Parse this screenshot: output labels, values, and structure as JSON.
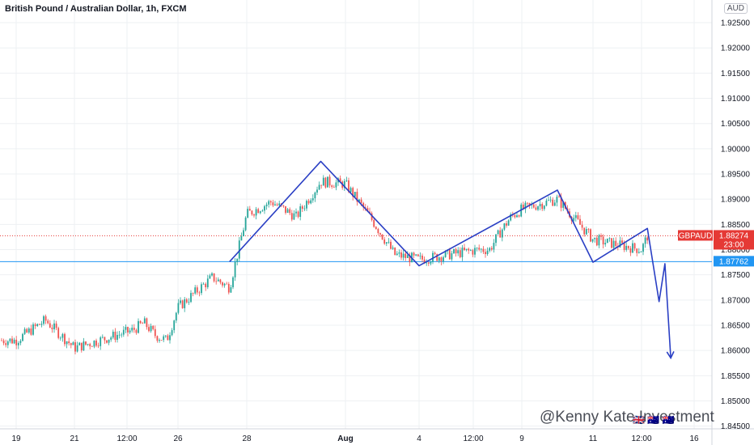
{
  "header": {
    "title": "British Pound / Australian Dollar, 1h, FXCM",
    "currency_badge": "AUD"
  },
  "price_tag": {
    "symbol": "GBPAUD",
    "price": "1.88274",
    "countdown": "23:00",
    "color": "#e53935"
  },
  "level_tag": {
    "price": "1.87762",
    "color": "#2196f3"
  },
  "watermark": "@Kenny Kate Investment",
  "colors": {
    "up": "#26a69a",
    "down": "#ef5350",
    "pattern": "#2a3fc4",
    "hline": "#2196f3",
    "grid": "#eef0f3"
  },
  "chart_data": {
    "type": "candlestick",
    "y_axis": {
      "ticks": [
        "1.92500",
        "1.92000",
        "1.91500",
        "1.91000",
        "1.90500",
        "1.90000",
        "1.89500",
        "1.89000",
        "1.88500",
        "1.88000",
        "1.87500",
        "1.87000",
        "1.86500",
        "1.86000",
        "1.85500",
        "1.85000",
        "1.84500"
      ],
      "ylim": [
        1.8435,
        1.9295
      ]
    },
    "x_axis": {
      "ticks": [
        "19",
        "21",
        "12:00",
        "26",
        "28",
        "Aug",
        "4",
        "12:00",
        "9",
        "11",
        "12:00",
        "16"
      ]
    },
    "horizontal_lines": [
      {
        "price": 1.87762,
        "style": "solid",
        "color": "#2196f3"
      },
      {
        "price": 1.88274,
        "style": "dotted",
        "color": "#e53935"
      }
    ],
    "price_path": [
      {
        "x": "Jul 19",
        "y": 1.862
      },
      {
        "x": "Jul 20",
        "y": 1.866
      },
      {
        "x": "Jul 21",
        "y": 1.8605
      },
      {
        "x": "Jul 22",
        "y": 1.864
      },
      {
        "x": "Jul 23",
        "y": 1.8655
      },
      {
        "x": "Jul 24",
        "y": 1.863
      },
      {
        "x": "Jul 25",
        "y": 1.862
      },
      {
        "x": "Jul 26",
        "y": 1.8685
      },
      {
        "x": "Jul 27",
        "y": 1.8745
      },
      {
        "x": "Jul 27 12:00",
        "y": 1.8725
      },
      {
        "x": "Jul 28",
        "y": 1.887
      },
      {
        "x": "Jul 29",
        "y": 1.8895
      },
      {
        "x": "Jul 30",
        "y": 1.8865
      },
      {
        "x": "Jul 31",
        "y": 1.8935
      },
      {
        "x": "Aug 1",
        "y": 1.893
      },
      {
        "x": "Aug 2",
        "y": 1.8865
      },
      {
        "x": "Aug 3",
        "y": 1.879
      },
      {
        "x": "Aug 4",
        "y": 1.878
      },
      {
        "x": "Aug 5",
        "y": 1.88
      },
      {
        "x": "Aug 6",
        "y": 1.88
      },
      {
        "x": "Aug 7",
        "y": 1.8835
      },
      {
        "x": "Aug 8",
        "y": 1.8865
      },
      {
        "x": "Aug 9",
        "y": 1.888
      },
      {
        "x": "Aug 10",
        "y": 1.89
      },
      {
        "x": "Aug 11",
        "y": 1.882
      },
      {
        "x": "Aug 11 12:00",
        "y": 1.88
      },
      {
        "x": "Aug 12",
        "y": 1.8827
      }
    ],
    "drawn_pattern": [
      {
        "x": "Jul 27 12:00",
        "y": 1.8776
      },
      {
        "x": "Jul 31",
        "y": 1.8975
      },
      {
        "x": "Aug 4",
        "y": 1.8768
      },
      {
        "x": "Aug 10",
        "y": 1.8918
      },
      {
        "x": "Aug 11",
        "y": 1.8775
      },
      {
        "x": "Aug 12",
        "y": 1.8842
      },
      {
        "x": "Aug 13",
        "y": 1.8697
      },
      {
        "x": "Aug 13 12:00",
        "y": 1.8772
      },
      {
        "x": "Aug 14",
        "y": 1.8585
      }
    ]
  }
}
